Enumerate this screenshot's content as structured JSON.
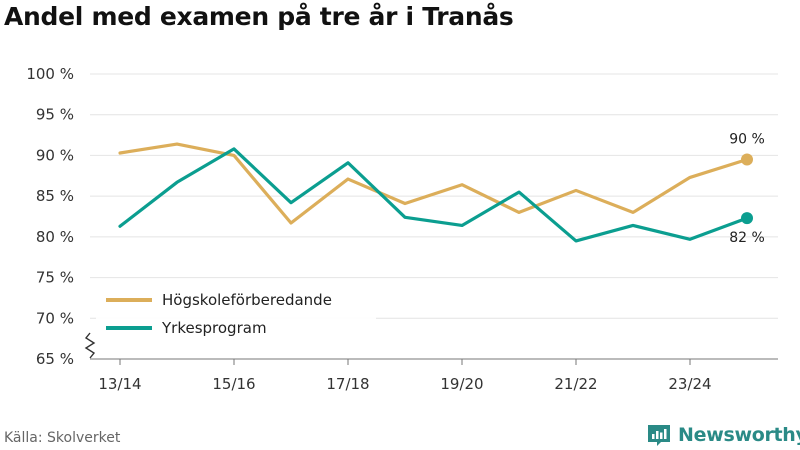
{
  "title": "Andel med examen på tre år i Tranås",
  "source": "Källa: Skolverket",
  "brand": {
    "name": "Newsworthy",
    "icon": "newsworthy-logo-icon",
    "color": "#2a8a86"
  },
  "chart_data": {
    "type": "line",
    "title": "Andel med examen på tre år i Tranås",
    "x": [
      "13/14",
      "14/15",
      "15/16",
      "16/17",
      "17/18",
      "18/19",
      "19/20",
      "20/21",
      "21/22",
      "22/23",
      "23/24",
      "24/25"
    ],
    "x_tick_labels": [
      "13/14",
      "15/16",
      "17/18",
      "19/20",
      "21/22",
      "23/24"
    ],
    "y_tick_labels": [
      "65 %",
      "70 %",
      "75 %",
      "80 %",
      "85 %",
      "90 %",
      "95 %",
      "100 %"
    ],
    "ylim": [
      65,
      100
    ],
    "y_axis_break": true,
    "grid": true,
    "legend_position": "bottom-left",
    "series": [
      {
        "name": "Högskoleförberedande",
        "color": "#dcae5a",
        "values": [
          90.3,
          91.4,
          90.0,
          81.7,
          87.1,
          84.1,
          86.4,
          83.0,
          85.7,
          83.0,
          87.3,
          89.5
        ],
        "end_label": "90 %"
      },
      {
        "name": "Yrkesprogram",
        "color": "#0b9e90",
        "values": [
          81.3,
          86.7,
          90.8,
          84.2,
          89.1,
          82.4,
          81.4,
          85.5,
          79.5,
          81.4,
          79.7,
          82.3
        ],
        "end_label": "82 %"
      }
    ]
  }
}
